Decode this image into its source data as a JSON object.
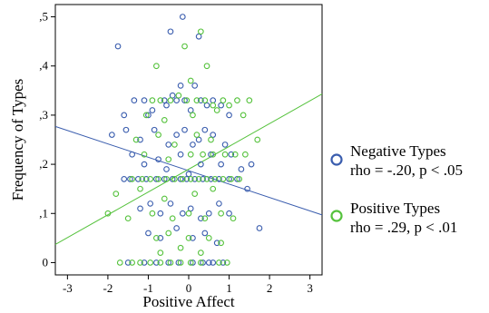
{
  "chart_data": {
    "type": "scatter",
    "xlabel": "Positive Affect",
    "ylabel": "Frequency of Types",
    "xlim": [
      -3.3,
      3.3
    ],
    "ylim": [
      -0.025,
      0.525
    ],
    "x_ticks": [
      -3,
      -2,
      -1,
      0,
      1,
      2,
      3
    ],
    "x_tick_labels": [
      "-3",
      "-2",
      "-1",
      "0",
      "1",
      "2",
      "3"
    ],
    "y_ticks": [
      0,
      0.1,
      0.2,
      0.3,
      0.4,
      0.5
    ],
    "y_tick_labels": [
      "0",
      ",1",
      ",2",
      ",3",
      ",4",
      ",5"
    ],
    "grid": false,
    "legend_position": "right",
    "series": [
      {
        "name": "Negative Types",
        "stat_label": "rho = -.20, p < .05",
        "color": "#3a5dae",
        "marker": "open-circle",
        "fit_line": {
          "x": [
            -3.3,
            3.3
          ],
          "y": [
            0.277,
            0.097
          ]
        },
        "points": [
          [
            -1.75,
            0.44
          ],
          [
            -0.45,
            0.47
          ],
          [
            -0.15,
            0.5
          ],
          [
            0.25,
            0.46
          ],
          [
            -1.1,
            0.33
          ],
          [
            -1.6,
            0.3
          ],
          [
            -1.35,
            0.33
          ],
          [
            -1.0,
            0.3
          ],
          [
            -0.9,
            0.31
          ],
          [
            -0.6,
            0.33
          ],
          [
            -0.55,
            0.32
          ],
          [
            -0.4,
            0.34
          ],
          [
            -0.3,
            0.33
          ],
          [
            -0.2,
            0.36
          ],
          [
            -0.1,
            0.33
          ],
          [
            0.05,
            0.31
          ],
          [
            0.15,
            0.36
          ],
          [
            0.3,
            0.33
          ],
          [
            0.45,
            0.32
          ],
          [
            0.6,
            0.33
          ],
          [
            0.8,
            0.32
          ],
          [
            1.0,
            0.3
          ],
          [
            -1.9,
            0.26
          ],
          [
            -1.55,
            0.27
          ],
          [
            -1.2,
            0.25
          ],
          [
            -0.85,
            0.27
          ],
          [
            -0.5,
            0.24
          ],
          [
            -0.3,
            0.26
          ],
          [
            -0.1,
            0.27
          ],
          [
            0.1,
            0.24
          ],
          [
            0.25,
            0.25
          ],
          [
            0.4,
            0.27
          ],
          [
            0.6,
            0.26
          ],
          [
            0.9,
            0.24
          ],
          [
            -1.4,
            0.22
          ],
          [
            -1.1,
            0.2
          ],
          [
            -0.75,
            0.21
          ],
          [
            -0.55,
            0.19
          ],
          [
            -0.2,
            0.22
          ],
          [
            0.0,
            0.18
          ],
          [
            0.3,
            0.2
          ],
          [
            0.55,
            0.22
          ],
          [
            0.8,
            0.2
          ],
          [
            1.05,
            0.22
          ],
          [
            1.3,
            0.19
          ],
          [
            1.55,
            0.2
          ],
          [
            -1.6,
            0.17
          ],
          [
            -1.45,
            0.17
          ],
          [
            -1.25,
            0.17
          ],
          [
            -1.05,
            0.17
          ],
          [
            -0.8,
            0.17
          ],
          [
            -0.6,
            0.17
          ],
          [
            -0.4,
            0.17
          ],
          [
            -0.2,
            0.17
          ],
          [
            -0.05,
            0.17
          ],
          [
            0.15,
            0.17
          ],
          [
            0.35,
            0.17
          ],
          [
            0.55,
            0.17
          ],
          [
            0.75,
            0.17
          ],
          [
            1.0,
            0.17
          ],
          [
            1.2,
            0.17
          ],
          [
            1.45,
            0.15
          ],
          [
            -1.2,
            0.11
          ],
          [
            -0.95,
            0.12
          ],
          [
            -0.7,
            0.1
          ],
          [
            -0.45,
            0.12
          ],
          [
            -0.15,
            0.1
          ],
          [
            0.05,
            0.11
          ],
          [
            0.3,
            0.09
          ],
          [
            0.5,
            0.1
          ],
          [
            0.75,
            0.12
          ],
          [
            1.0,
            0.1
          ],
          [
            -1.0,
            0.06
          ],
          [
            -0.7,
            0.05
          ],
          [
            -0.3,
            0.07
          ],
          [
            0.1,
            0.05
          ],
          [
            0.4,
            0.06
          ],
          [
            0.7,
            0.04
          ],
          [
            1.75,
            0.07
          ],
          [
            -1.5,
            0.0
          ],
          [
            -1.1,
            0.0
          ],
          [
            -0.8,
            0.0
          ],
          [
            -0.5,
            0.0
          ],
          [
            -0.25,
            0.0
          ],
          [
            0.1,
            0.0
          ],
          [
            0.35,
            0.0
          ],
          [
            0.5,
            0.0
          ],
          [
            0.6,
            0.0
          ],
          [
            0.85,
            0.0
          ]
        ]
      },
      {
        "name": "Positive Types",
        "stat_label": "rho = .29, p < .01",
        "color": "#55c23c",
        "marker": "open-circle",
        "fit_line": {
          "x": [
            -3.3,
            3.3
          ],
          "y": [
            0.037,
            0.343
          ]
        },
        "points": [
          [
            -0.1,
            0.44
          ],
          [
            0.3,
            0.47
          ],
          [
            -0.8,
            0.4
          ],
          [
            0.05,
            0.37
          ],
          [
            0.45,
            0.4
          ],
          [
            -0.9,
            0.33
          ],
          [
            -0.7,
            0.33
          ],
          [
            -0.45,
            0.33
          ],
          [
            -0.25,
            0.34
          ],
          [
            -0.05,
            0.33
          ],
          [
            0.2,
            0.33
          ],
          [
            0.4,
            0.33
          ],
          [
            0.6,
            0.32
          ],
          [
            0.85,
            0.33
          ],
          [
            1.2,
            0.33
          ],
          [
            1.5,
            0.33
          ],
          [
            1.0,
            0.32
          ],
          [
            -1.05,
            0.3
          ],
          [
            -0.6,
            0.29
          ],
          [
            0.1,
            0.3
          ],
          [
            0.7,
            0.31
          ],
          [
            1.35,
            0.3
          ],
          [
            -1.3,
            0.25
          ],
          [
            -0.75,
            0.26
          ],
          [
            -0.35,
            0.24
          ],
          [
            0.2,
            0.26
          ],
          [
            0.55,
            0.25
          ],
          [
            1.7,
            0.25
          ],
          [
            -1.1,
            0.22
          ],
          [
            -0.5,
            0.21
          ],
          [
            0.05,
            0.22
          ],
          [
            0.35,
            0.22
          ],
          [
            0.6,
            0.22
          ],
          [
            0.9,
            0.22
          ],
          [
            1.15,
            0.22
          ],
          [
            1.4,
            0.22
          ],
          [
            -1.4,
            0.17
          ],
          [
            -1.15,
            0.17
          ],
          [
            -0.95,
            0.17
          ],
          [
            -0.75,
            0.17
          ],
          [
            -0.55,
            0.17
          ],
          [
            -0.35,
            0.17
          ],
          [
            -0.15,
            0.17
          ],
          [
            0.05,
            0.17
          ],
          [
            0.25,
            0.17
          ],
          [
            0.45,
            0.17
          ],
          [
            0.65,
            0.17
          ],
          [
            0.85,
            0.17
          ],
          [
            1.05,
            0.17
          ],
          [
            1.25,
            0.17
          ],
          [
            -1.8,
            0.14
          ],
          [
            -1.2,
            0.15
          ],
          [
            -0.6,
            0.13
          ],
          [
            0.15,
            0.14
          ],
          [
            0.6,
            0.15
          ],
          [
            -2.0,
            0.1
          ],
          [
            -1.5,
            0.09
          ],
          [
            -0.9,
            0.1
          ],
          [
            -0.4,
            0.09
          ],
          [
            0.0,
            0.1
          ],
          [
            0.4,
            0.09
          ],
          [
            0.8,
            0.1
          ],
          [
            1.1,
            0.09
          ],
          [
            -0.8,
            0.05
          ],
          [
            -0.5,
            0.06
          ],
          [
            0.0,
            0.05
          ],
          [
            0.5,
            0.05
          ],
          [
            0.8,
            0.04
          ],
          [
            -0.7,
            0.02
          ],
          [
            -0.2,
            0.03
          ],
          [
            0.3,
            0.02
          ],
          [
            -1.7,
            0.0
          ],
          [
            -1.4,
            0.0
          ],
          [
            -1.2,
            0.0
          ],
          [
            -0.95,
            0.0
          ],
          [
            -0.7,
            0.0
          ],
          [
            -0.45,
            0.0
          ],
          [
            -0.2,
            0.0
          ],
          [
            0.05,
            0.0
          ],
          [
            0.3,
            0.0
          ],
          [
            0.75,
            0.0
          ],
          [
            0.95,
            0.0
          ]
        ]
      }
    ]
  }
}
